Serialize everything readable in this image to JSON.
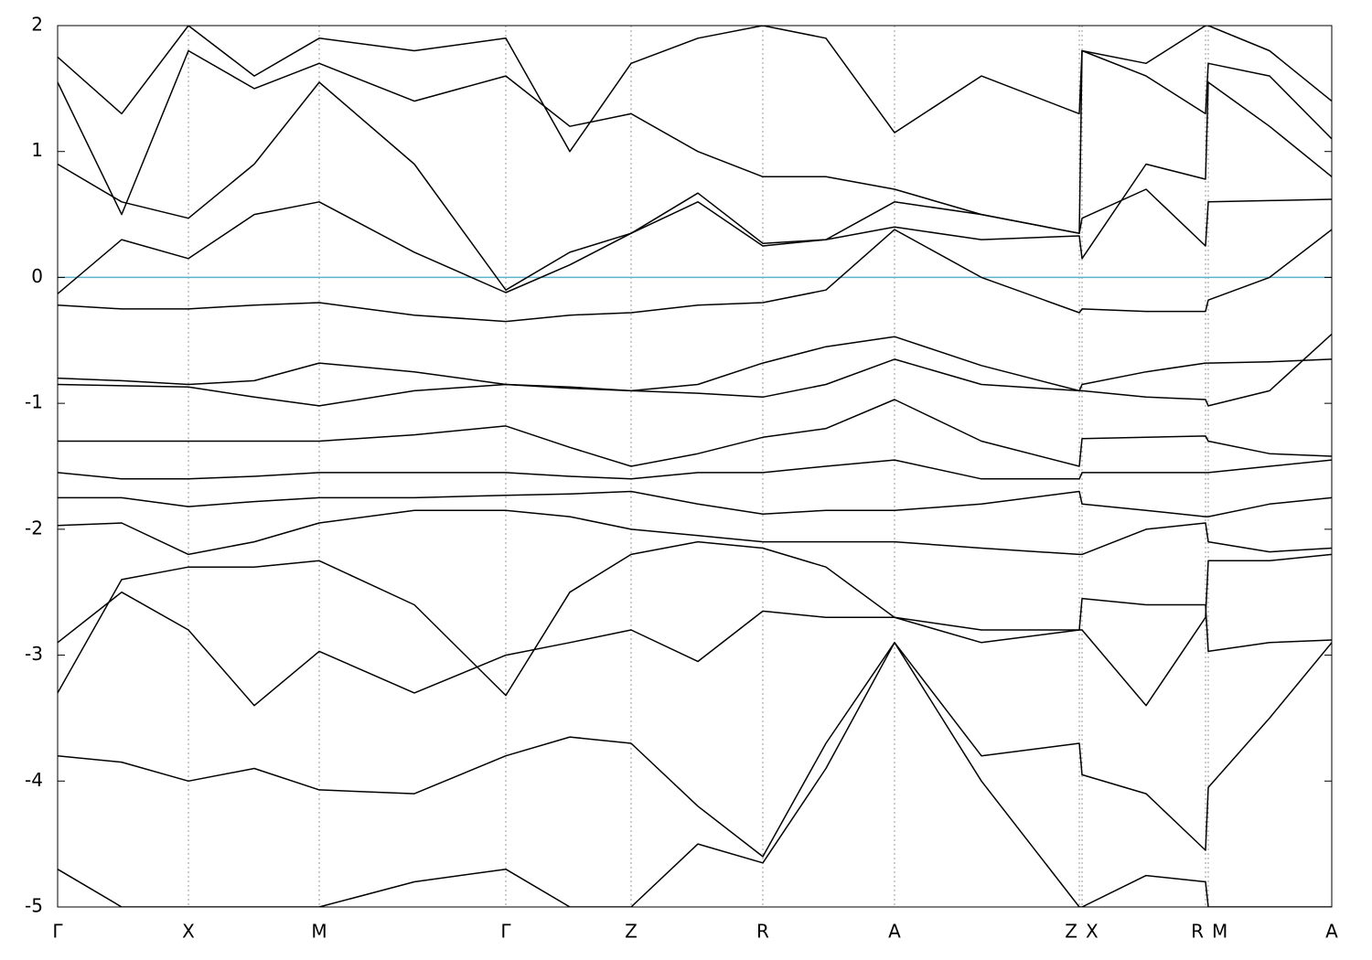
{
  "chart_data": {
    "type": "line",
    "xlim": [
      0,
      13.93
    ],
    "ylim": [
      -5,
      2
    ],
    "yticks": [
      -5,
      -4,
      -3,
      -2,
      -1,
      0,
      1,
      2
    ],
    "xticks": [
      {
        "value": 0,
        "label": "Γ"
      },
      {
        "value": 1.43,
        "label": "X"
      },
      {
        "value": 2.86,
        "label": "M"
      },
      {
        "value": 4.9,
        "label": "Γ"
      },
      {
        "value": 6.27,
        "label": "Z"
      },
      {
        "value": 7.71,
        "label": "R"
      },
      {
        "value": 9.15,
        "label": "A"
      },
      {
        "value": 11.17,
        "label": "Z"
      },
      {
        "value": 11.2,
        "label": "X"
      },
      {
        "value": 12.55,
        "label": "R"
      },
      {
        "value": 12.58,
        "label": "M"
      },
      {
        "value": 13.93,
        "label": "A"
      }
    ],
    "xgrid": true,
    "line_color": "#000000",
    "reference_lines": [
      {
        "value": 0,
        "color": "#5bb3c9"
      }
    ],
    "x": [
      0,
      0.7,
      1.43,
      2.15,
      2.86,
      3.9,
      4.9,
      5.6,
      6.27,
      7.0,
      7.71,
      8.4,
      9.15,
      10.1,
      11.17,
      11.2,
      11.9,
      12.55,
      12.58,
      13.25,
      13.93
    ],
    "series": [
      {
        "values": [
          -0.22,
          -0.25,
          -0.25,
          -0.22,
          -0.2,
          -0.3,
          -0.35,
          -0.3,
          -0.28,
          -0.22,
          -0.2,
          -0.1,
          0.38,
          0.0,
          -0.28,
          -0.25,
          -0.27,
          -0.27,
          -0.18,
          0.0,
          0.38
        ]
      },
      {
        "values": [
          -0.8,
          -0.82,
          -0.85,
          -0.82,
          -0.68,
          -0.75,
          -0.85,
          -0.88,
          -0.9,
          -0.85,
          -0.68,
          -0.55,
          -0.47,
          -0.7,
          -0.9,
          -0.85,
          -0.75,
          -0.68,
          -0.68,
          -0.67,
          -0.65
        ]
      },
      {
        "values": [
          -0.85,
          -0.86,
          -0.87,
          -0.95,
          -1.02,
          -0.9,
          -0.85,
          -0.87,
          -0.9,
          -0.92,
          -0.95,
          -0.85,
          -0.65,
          -0.85,
          -0.9,
          -0.9,
          -0.95,
          -0.97,
          -1.02,
          -0.9,
          -0.45
        ]
      },
      {
        "values": [
          -1.3,
          -1.3,
          -1.3,
          -1.3,
          -1.3,
          -1.25,
          -1.18,
          -1.35,
          -1.5,
          -1.4,
          -1.27,
          -1.2,
          -0.97,
          -1.3,
          -1.5,
          -1.28,
          -1.27,
          -1.26,
          -1.3,
          -1.4,
          -1.42
        ]
      },
      {
        "values": [
          -1.55,
          -1.6,
          -1.6,
          -1.58,
          -1.55,
          -1.55,
          -1.55,
          -1.58,
          -1.6,
          -1.55,
          -1.55,
          -1.5,
          -1.45,
          -1.6,
          -1.6,
          -1.55,
          -1.55,
          -1.55,
          -1.55,
          -1.5,
          -1.45
        ]
      },
      {
        "values": [
          -1.75,
          -1.75,
          -1.82,
          -1.78,
          -1.75,
          -1.75,
          -1.73,
          -1.72,
          -1.7,
          -1.8,
          -1.88,
          -1.85,
          -1.85,
          -1.8,
          -1.7,
          -1.8,
          -1.85,
          -1.9,
          -1.9,
          -1.8,
          -1.75
        ]
      },
      {
        "values": [
          -1.97,
          -1.95,
          -2.2,
          -2.1,
          -1.95,
          -1.85,
          -1.85,
          -1.9,
          -2.0,
          -2.05,
          -2.1,
          -2.1,
          -2.1,
          -2.15,
          -2.2,
          -2.2,
          -2.0,
          -1.95,
          -2.1,
          -2.18,
          -2.15
        ]
      },
      {
        "values": [
          -3.3,
          -2.4,
          -2.3,
          -2.3,
          -2.25,
          -2.6,
          -3.32,
          -2.5,
          -2.2,
          -2.1,
          -2.15,
          -2.3,
          -2.7,
          -2.9,
          -2.8,
          -2.8,
          -3.4,
          -2.7,
          -2.25,
          -2.25,
          -2.2
        ]
      },
      {
        "values": [
          -3.8,
          -3.85,
          -4.0,
          -3.9,
          -4.07,
          -4.1,
          -3.8,
          -3.65,
          -3.7,
          -4.2,
          -4.6,
          -3.7,
          -2.9,
          -3.8,
          -3.7,
          -3.95,
          -4.1,
          -4.55,
          -4.05,
          -3.5,
          -2.9
        ]
      },
      {
        "values": [
          -2.9,
          -2.5,
          -2.8,
          -3.4,
          -2.97,
          -3.3,
          -3.0,
          -2.9,
          -2.8,
          -3.05,
          -2.65,
          -2.7,
          -2.7,
          -2.8,
          -2.8,
          -2.55,
          -2.6,
          -2.6,
          -2.97,
          -2.9,
          -2.88
        ]
      },
      {
        "values": [
          0.9,
          0.6,
          0.47,
          0.9,
          1.55,
          0.9,
          -0.1,
          0.2,
          0.35,
          0.6,
          0.25,
          0.3,
          0.6,
          0.5,
          0.35,
          0.47,
          0.7,
          0.25,
          0.6,
          0.61,
          0.62
        ]
      },
      {
        "values": [
          -0.13,
          0.3,
          0.15,
          0.5,
          0.6,
          0.2,
          -0.12,
          0.1,
          0.35,
          0.67,
          0.27,
          0.3,
          0.4,
          0.3,
          0.33,
          0.15,
          0.9,
          0.78,
          1.55,
          1.2,
          0.8
        ]
      },
      {
        "values": [
          1.55,
          0.5,
          1.8,
          1.5,
          1.7,
          1.4,
          1.6,
          1.2,
          1.3,
          1.0,
          0.8,
          0.8,
          0.7,
          0.5,
          0.35,
          1.8,
          1.6,
          1.3,
          1.7,
          1.6,
          1.1
        ]
      },
      {
        "values": [
          1.75,
          1.3,
          2,
          1.6,
          1.9,
          1.8,
          1.9,
          1.0,
          1.7,
          1.9,
          2,
          1.9,
          1.15,
          1.6,
          1.3,
          1.8,
          1.7,
          2,
          2,
          1.8,
          1.4
        ]
      },
      {
        "values": [
          -4.7,
          -5,
          -5,
          -5,
          -5,
          -4.8,
          -4.7,
          -5,
          -5,
          -4.5,
          -4.65,
          -3.9,
          -2.9,
          -4.0,
          -5,
          -5,
          -4.75,
          -4.8,
          -5,
          -5,
          -5
        ]
      }
    ]
  }
}
